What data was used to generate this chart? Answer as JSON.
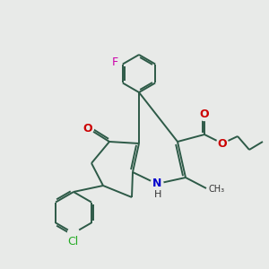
{
  "bg_color": "#e8eae8",
  "bond_color": "#2d5a47",
  "bond_width": 1.4,
  "N_color": "#0000cc",
  "O_color": "#cc0000",
  "F_color": "#cc00aa",
  "Cl_color": "#22aa22",
  "text_fontsize": 9,
  "small_fontsize": 8,
  "fig_w": 3.0,
  "fig_h": 3.0,
  "dpi": 100,
  "xlim": [
    0.0,
    3.0
  ],
  "ylim": [
    0.0,
    3.0
  ]
}
